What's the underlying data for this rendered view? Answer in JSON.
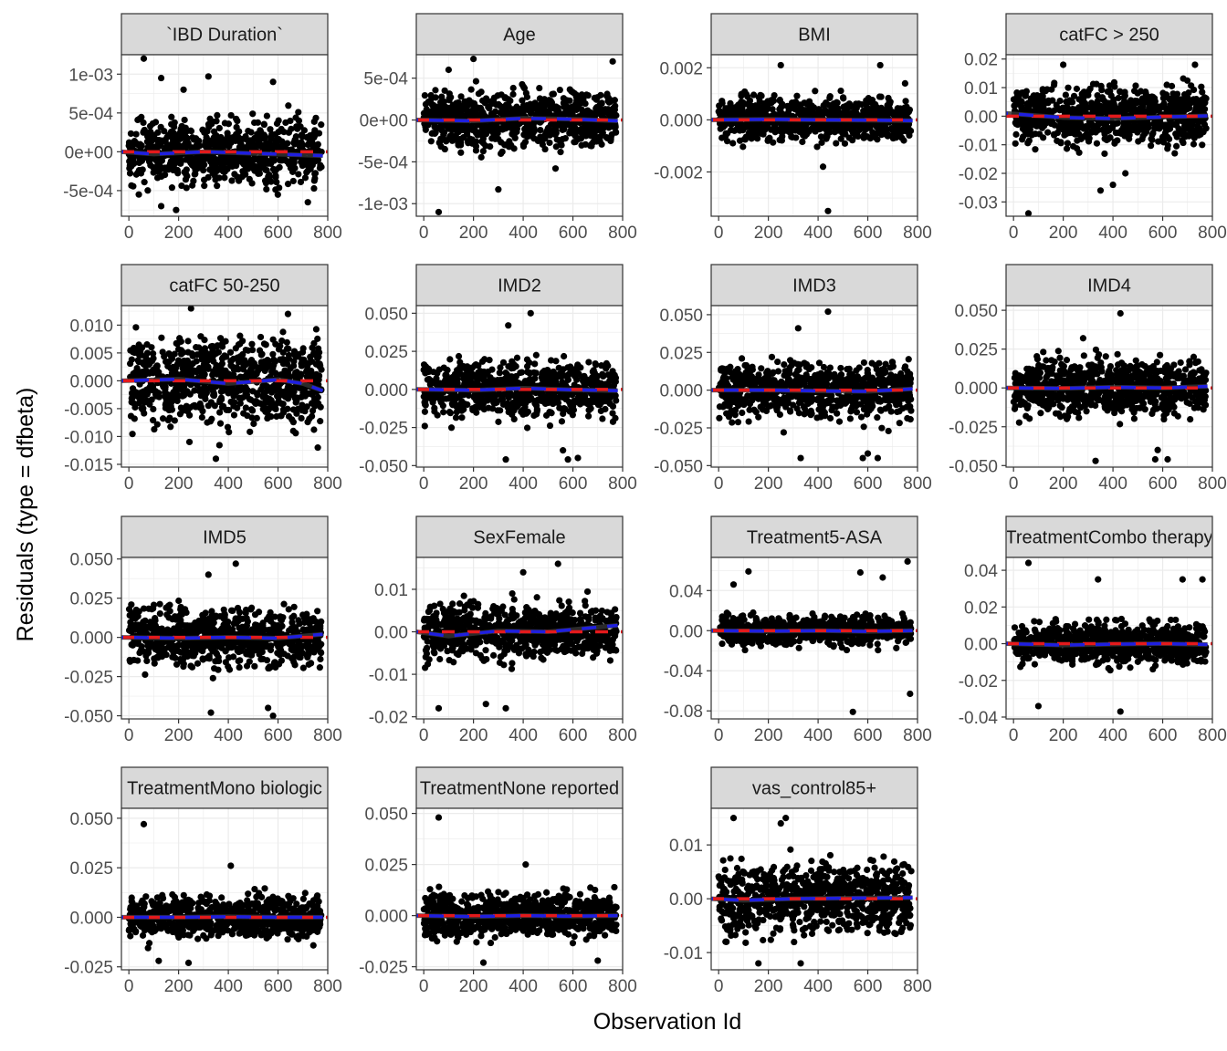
{
  "figure": {
    "xlabel": "Observation Id",
    "ylabel": "Residuals (type = dfbeta)"
  },
  "colors": {
    "points": "#000000",
    "smooth_line": "#333333",
    "reference_line": "#e41a1c",
    "fit_line": "#1f1fe0",
    "strip_background": "#d9d9d9",
    "grid": "#ebebeb"
  },
  "chart_data": [
    {
      "type": "scatter",
      "title": "`IBD Duration`",
      "x_ticks": [
        0,
        200,
        400,
        600,
        800
      ],
      "xlim": [
        -30,
        800
      ],
      "ylim": [
        -0.00083,
        0.00125
      ],
      "y_ticks": [
        -0.0005,
        0,
        0.0005,
        0.001
      ],
      "y_tick_labels": [
        "-5e-04",
        "0e+00",
        "5e-04",
        "1e-03"
      ],
      "n_points": 780,
      "spread": 0.00055,
      "extremes": [
        [
          60,
          0.0012
        ],
        [
          130,
          0.00095
        ],
        [
          320,
          0.00097
        ],
        [
          220,
          0.0008
        ],
        [
          580,
          0.0009
        ],
        [
          130,
          -0.0007
        ],
        [
          190,
          -0.00075
        ],
        [
          720,
          -0.00065
        ],
        [
          40,
          -0.00055
        ]
      ],
      "fit": [
        [
          -30,
          0.0
        ],
        [
          100,
          -3e-05
        ],
        [
          300,
          0.0
        ],
        [
          500,
          -2e-05
        ],
        [
          780,
          -5e-05
        ]
      ],
      "grid": true
    },
    {
      "type": "scatter",
      "title": "Age",
      "x_ticks": [
        0,
        200,
        400,
        600,
        800
      ],
      "xlim": [
        -30,
        800
      ],
      "ylim": [
        -0.00115,
        0.00078
      ],
      "y_ticks": [
        -0.001,
        -0.0005,
        0,
        0.0005
      ],
      "y_tick_labels": [
        "-1e-03",
        "-5e-04",
        "0e+00",
        "5e-04"
      ],
      "n_points": 780,
      "spread": 0.00045,
      "extremes": [
        [
          60,
          -0.0011
        ],
        [
          200,
          0.00073
        ],
        [
          300,
          -0.00083
        ],
        [
          530,
          -0.00058
        ],
        [
          760,
          0.0007
        ],
        [
          100,
          0.0006
        ]
      ],
      "fit": [
        [
          -30,
          0.0
        ],
        [
          200,
          -1e-05
        ],
        [
          400,
          2e-05
        ],
        [
          600,
          1e-05
        ],
        [
          780,
          -1e-05
        ]
      ],
      "grid": true
    },
    {
      "type": "scatter",
      "title": "BMI",
      "x_ticks": [
        0,
        200,
        400,
        600,
        800
      ],
      "xlim": [
        -30,
        800
      ],
      "ylim": [
        -0.0037,
        0.0025
      ],
      "y_ticks": [
        -0.002,
        0,
        0.002
      ],
      "y_tick_labels": [
        "-0.002",
        "0.000",
        "0.002"
      ],
      "n_points": 780,
      "spread": 0.0011,
      "extremes": [
        [
          440,
          -0.0035
        ],
        [
          250,
          0.0021
        ],
        [
          650,
          0.0021
        ],
        [
          420,
          -0.0018
        ],
        [
          750,
          0.0014
        ]
      ],
      "fit": [
        [
          -30,
          0.0
        ],
        [
          200,
          2e-05
        ],
        [
          400,
          0.0
        ],
        [
          600,
          -1e-05
        ],
        [
          780,
          -3e-05
        ]
      ],
      "grid": true
    },
    {
      "type": "scatter",
      "title": "catFC > 250",
      "x_ticks": [
        0,
        200,
        400,
        600,
        800
      ],
      "xlim": [
        -30,
        800
      ],
      "ylim": [
        -0.035,
        0.0215
      ],
      "y_ticks": [
        -0.03,
        -0.02,
        -0.01,
        0,
        0.01,
        0.02
      ],
      "y_tick_labels": [
        "-0.03",
        "-0.02",
        "-0.01",
        "0.00",
        "0.01",
        "0.02"
      ],
      "n_points": 780,
      "spread": 0.013,
      "extremes": [
        [
          60,
          -0.034
        ],
        [
          350,
          -0.026
        ],
        [
          400,
          -0.024
        ],
        [
          730,
          0.018
        ],
        [
          200,
          0.018
        ],
        [
          450,
          -0.02
        ]
      ],
      "fit": [
        [
          -30,
          0.001
        ],
        [
          200,
          -0.0005
        ],
        [
          400,
          -0.0008
        ],
        [
          600,
          -0.0003
        ],
        [
          780,
          0.0001
        ]
      ],
      "grid": true
    },
    {
      "type": "scatter",
      "title": "catFC 50-250",
      "x_ticks": [
        0,
        200,
        400,
        600,
        800
      ],
      "xlim": [
        -30,
        800
      ],
      "ylim": [
        -0.0155,
        0.0135
      ],
      "y_ticks": [
        -0.015,
        -0.01,
        -0.005,
        0,
        0.005,
        0.01
      ],
      "y_tick_labels": [
        "-0.015",
        "-0.010",
        "-0.005",
        "0.000",
        "0.005",
        "0.010"
      ],
      "n_points": 780,
      "spread": 0.0105,
      "extremes": [
        [
          250,
          0.013
        ],
        [
          350,
          -0.014
        ],
        [
          640,
          0.012
        ],
        [
          760,
          -0.012
        ]
      ],
      "fit": [
        [
          -30,
          0.0
        ],
        [
          200,
          0.0003
        ],
        [
          400,
          -0.0005
        ],
        [
          600,
          0.0002
        ],
        [
          700,
          -0.0005
        ],
        [
          780,
          -0.0018
        ]
      ],
      "grid": true
    },
    {
      "type": "scatter",
      "title": "IMD2",
      "x_ticks": [
        0,
        200,
        400,
        600,
        800
      ],
      "xlim": [
        -30,
        800
      ],
      "ylim": [
        -0.051,
        0.055
      ],
      "y_ticks": [
        -0.05,
        -0.025,
        0,
        0.025,
        0.05
      ],
      "y_tick_labels": [
        "-0.050",
        "-0.025",
        "0.000",
        "0.025",
        "0.050"
      ],
      "n_points": 780,
      "spread": 0.024,
      "extremes": [
        [
          430,
          0.05
        ],
        [
          330,
          -0.046
        ],
        [
          580,
          -0.046
        ],
        [
          620,
          -0.045
        ],
        [
          340,
          0.042
        ],
        [
          560,
          -0.04
        ]
      ],
      "fit": [
        [
          -30,
          0.0
        ],
        [
          200,
          -0.0005
        ],
        [
          400,
          0.0008
        ],
        [
          600,
          -0.0003
        ],
        [
          780,
          -0.0008
        ]
      ],
      "grid": true
    },
    {
      "type": "scatter",
      "title": "IMD3",
      "x_ticks": [
        0,
        200,
        400,
        600,
        800
      ],
      "xlim": [
        -30,
        800
      ],
      "ylim": [
        -0.051,
        0.056
      ],
      "y_ticks": [
        -0.05,
        -0.025,
        0,
        0.025,
        0.05
      ],
      "y_tick_labels": [
        "-0.050",
        "-0.025",
        "0.000",
        "0.025",
        "0.050"
      ],
      "n_points": 780,
      "spread": 0.024,
      "extremes": [
        [
          440,
          0.052
        ],
        [
          580,
          -0.045
        ],
        [
          640,
          -0.045
        ],
        [
          320,
          0.041
        ],
        [
          330,
          -0.045
        ],
        [
          600,
          -0.042
        ]
      ],
      "fit": [
        [
          -30,
          0.0
        ],
        [
          200,
          0.0
        ],
        [
          400,
          -0.0005
        ],
        [
          600,
          -0.0008
        ],
        [
          780,
          0.0008
        ]
      ],
      "grid": true
    },
    {
      "type": "scatter",
      "title": "IMD4",
      "x_ticks": [
        0,
        200,
        400,
        600,
        800
      ],
      "xlim": [
        -30,
        800
      ],
      "ylim": [
        -0.051,
        0.053
      ],
      "y_ticks": [
        -0.05,
        -0.025,
        0,
        0.025,
        0.05
      ],
      "y_tick_labels": [
        "-0.050",
        "-0.025",
        "0.000",
        "0.025",
        "0.050"
      ],
      "n_points": 780,
      "spread": 0.024,
      "extremes": [
        [
          430,
          0.048
        ],
        [
          330,
          -0.047
        ],
        [
          570,
          -0.046
        ],
        [
          620,
          -0.046
        ],
        [
          280,
          0.032
        ],
        [
          580,
          -0.04
        ]
      ],
      "fit": [
        [
          -30,
          0.0
        ],
        [
          200,
          -0.0003
        ],
        [
          400,
          0.0005
        ],
        [
          600,
          0.0
        ],
        [
          780,
          0.001
        ]
      ],
      "grid": true
    },
    {
      "type": "scatter",
      "title": "IMD5",
      "x_ticks": [
        0,
        200,
        400,
        600,
        800
      ],
      "xlim": [
        -30,
        800
      ],
      "ylim": [
        -0.052,
        0.051
      ],
      "y_ticks": [
        -0.05,
        -0.025,
        0,
        0.025,
        0.05
      ],
      "y_tick_labels": [
        "-0.050",
        "-0.025",
        "0.000",
        "0.025",
        "0.050"
      ],
      "n_points": 780,
      "spread": 0.024,
      "extremes": [
        [
          430,
          0.047
        ],
        [
          580,
          -0.05
        ],
        [
          330,
          -0.048
        ],
        [
          560,
          -0.045
        ],
        [
          320,
          0.04
        ]
      ],
      "fit": [
        [
          -30,
          0.0
        ],
        [
          200,
          -0.0005
        ],
        [
          400,
          0.0
        ],
        [
          600,
          -0.0005
        ],
        [
          780,
          0.002
        ]
      ],
      "grid": true
    },
    {
      "type": "scatter",
      "title": "SexFemale",
      "x_ticks": [
        0,
        200,
        400,
        600,
        800
      ],
      "xlim": [
        -30,
        800
      ],
      "ylim": [
        -0.0205,
        0.0175
      ],
      "y_ticks": [
        -0.02,
        -0.01,
        0,
        0.01
      ],
      "y_tick_labels": [
        "-0.02",
        "-0.01",
        "0.00",
        "0.01"
      ],
      "n_points": 780,
      "spread": 0.0085,
      "extremes": [
        [
          540,
          0.016
        ],
        [
          400,
          0.014
        ],
        [
          60,
          -0.018
        ],
        [
          330,
          -0.018
        ],
        [
          250,
          -0.017
        ]
      ],
      "fit": [
        [
          -30,
          0.0
        ],
        [
          100,
          -0.001
        ],
        [
          300,
          0.0002
        ],
        [
          500,
          0.0
        ],
        [
          780,
          0.0015
        ]
      ],
      "grid": true
    },
    {
      "type": "scatter",
      "title": "Treatment5-ASA",
      "x_ticks": [
        0,
        200,
        400,
        600,
        800
      ],
      "xlim": [
        -30,
        800
      ],
      "ylim": [
        -0.088,
        0.073
      ],
      "y_ticks": [
        -0.08,
        -0.04,
        0,
        0.04
      ],
      "y_tick_labels": [
        "-0.08",
        "-0.04",
        "0.00",
        "0.04"
      ],
      "n_points": 780,
      "spread": 0.018,
      "extremes": [
        [
          540,
          -0.081
        ],
        [
          770,
          -0.063
        ],
        [
          760,
          0.069
        ],
        [
          120,
          0.059
        ],
        [
          570,
          0.058
        ],
        [
          660,
          0.053
        ],
        [
          60,
          0.046
        ]
      ],
      "fit": [
        [
          -30,
          0.0
        ],
        [
          200,
          -0.0005
        ],
        [
          400,
          0.0
        ],
        [
          600,
          -0.0008
        ],
        [
          780,
          0.0
        ]
      ],
      "grid": true
    },
    {
      "type": "scatter",
      "title": "TreatmentCombo therapy",
      "x_ticks": [
        0,
        200,
        400,
        600,
        800
      ],
      "xlim": [
        -30,
        800
      ],
      "ylim": [
        -0.041,
        0.047
      ],
      "y_ticks": [
        -0.04,
        -0.02,
        0,
        0.02,
        0.04
      ],
      "y_tick_labels": [
        "-0.04",
        "-0.02",
        "0.00",
        "0.02",
        "0.04"
      ],
      "n_points": 780,
      "spread": 0.015,
      "extremes": [
        [
          60,
          0.044
        ],
        [
          430,
          -0.037
        ],
        [
          100,
          -0.034
        ],
        [
          340,
          0.035
        ],
        [
          760,
          0.035
        ],
        [
          680,
          0.035
        ]
      ],
      "fit": [
        [
          -30,
          0.0
        ],
        [
          200,
          -0.0008
        ],
        [
          400,
          -0.0003
        ],
        [
          600,
          0.0
        ],
        [
          780,
          -0.0005
        ]
      ],
      "grid": true
    },
    {
      "type": "scatter",
      "title": "TreatmentMono biologic",
      "x_ticks": [
        0,
        200,
        400,
        600,
        800
      ],
      "xlim": [
        -30,
        800
      ],
      "ylim": [
        -0.0265,
        0.055
      ],
      "y_ticks": [
        -0.025,
        0,
        0.025,
        0.05
      ],
      "y_tick_labels": [
        "-0.025",
        "0.000",
        "0.025",
        "0.050"
      ],
      "n_points": 780,
      "spread": 0.014,
      "extremes": [
        [
          60,
          0.047
        ],
        [
          410,
          0.026
        ],
        [
          240,
          -0.023
        ],
        [
          120,
          -0.022
        ]
      ],
      "fit": [
        [
          -30,
          0.0
        ],
        [
          200,
          0.0
        ],
        [
          400,
          0.0003
        ],
        [
          600,
          0.0
        ],
        [
          780,
          0.0
        ]
      ],
      "grid": true
    },
    {
      "type": "scatter",
      "title": "TreatmentNone reported",
      "x_ticks": [
        0,
        200,
        400,
        600,
        800
      ],
      "xlim": [
        -30,
        800
      ],
      "ylim": [
        -0.0265,
        0.0525
      ],
      "y_ticks": [
        -0.025,
        0,
        0.025,
        0.05
      ],
      "y_tick_labels": [
        "-0.025",
        "0.000",
        "0.025",
        "0.050"
      ],
      "n_points": 780,
      "spread": 0.014,
      "extremes": [
        [
          60,
          0.048
        ],
        [
          410,
          0.025
        ],
        [
          240,
          -0.023
        ],
        [
          700,
          -0.022
        ]
      ],
      "fit": [
        [
          -30,
          0.0
        ],
        [
          200,
          -0.0005
        ],
        [
          400,
          0.0
        ],
        [
          600,
          -0.0003
        ],
        [
          780,
          0.0
        ]
      ],
      "grid": true
    },
    {
      "type": "scatter",
      "title": "vas_control85+",
      "x_ticks": [
        0,
        200,
        400,
        600,
        800
      ],
      "xlim": [
        -30,
        800
      ],
      "ylim": [
        -0.0132,
        0.0168
      ],
      "y_ticks": [
        -0.01,
        0,
        0.01
      ],
      "y_tick_labels": [
        "-0.01",
        "0.00",
        "0.01"
      ],
      "n_points": 780,
      "spread": 0.009,
      "extremes": [
        [
          60,
          0.015
        ],
        [
          270,
          0.015
        ],
        [
          250,
          0.014
        ],
        [
          330,
          -0.012
        ],
        [
          160,
          -0.012
        ]
      ],
      "fit": [
        [
          -30,
          0.0
        ],
        [
          100,
          -0.0003
        ],
        [
          300,
          0.0
        ],
        [
          500,
          0.0001
        ],
        [
          780,
          0.0002
        ]
      ],
      "grid": true
    }
  ]
}
